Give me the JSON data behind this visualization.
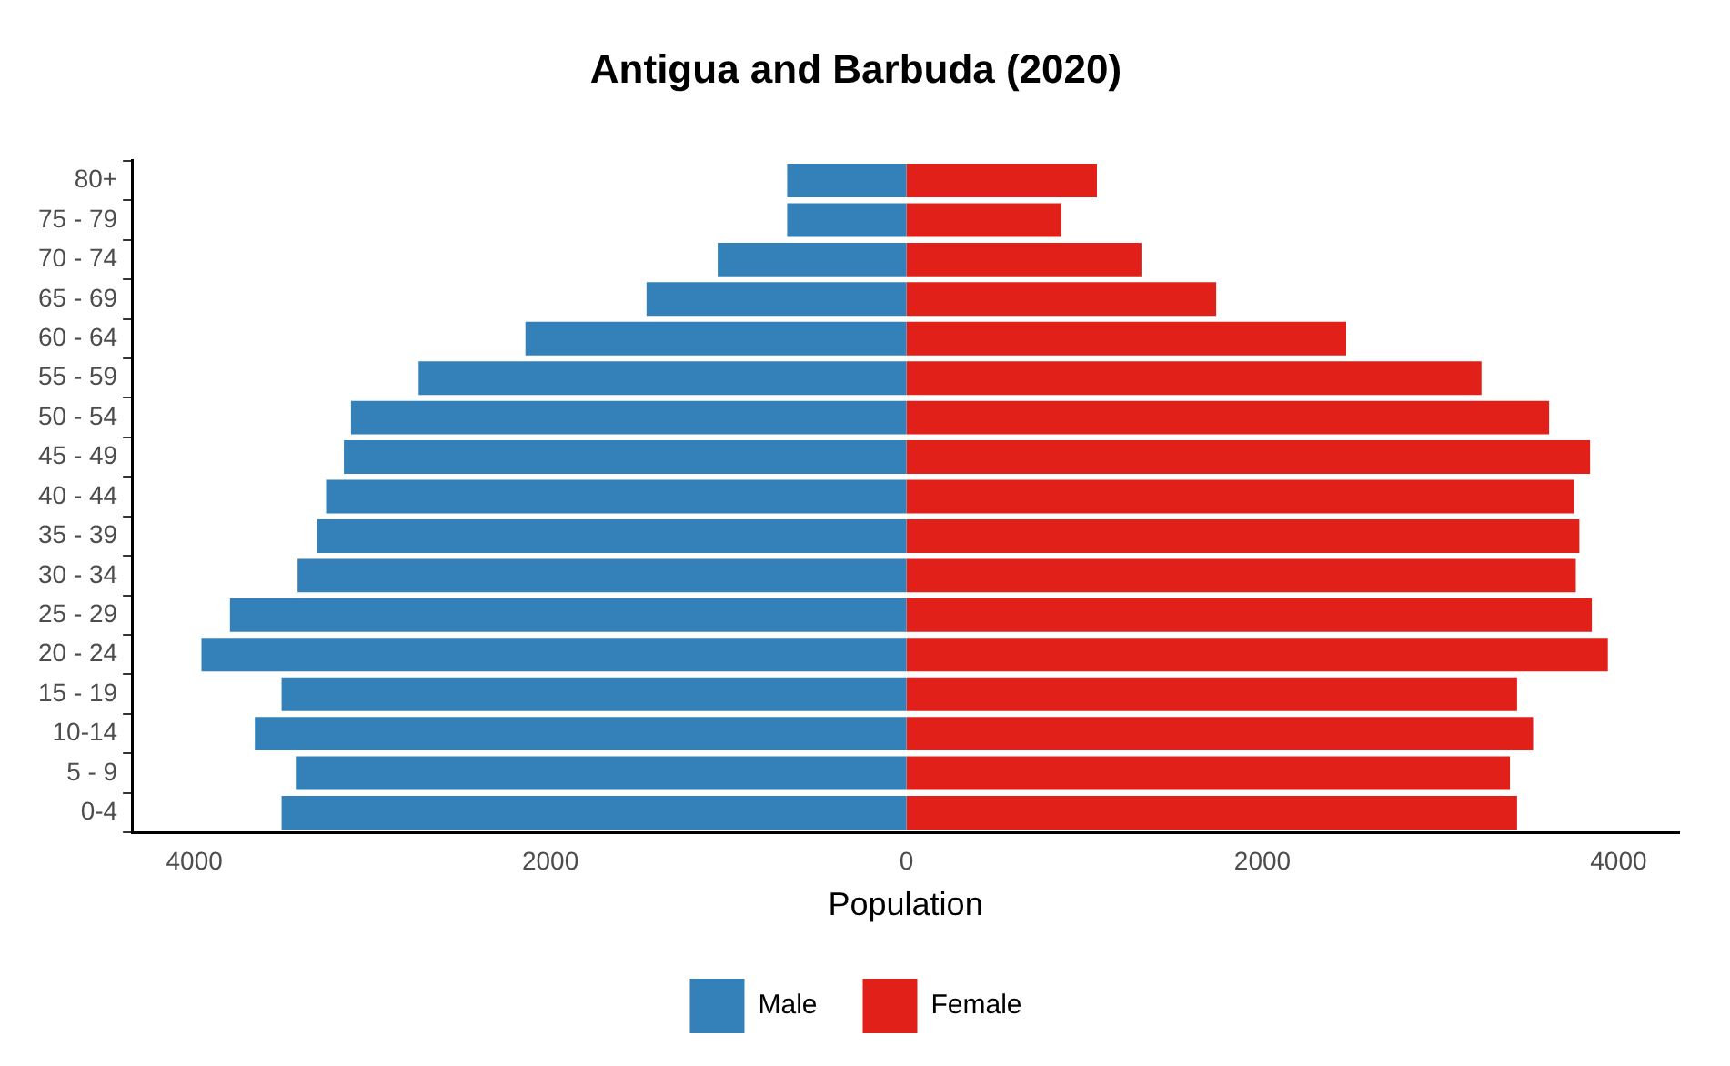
{
  "chart_data": {
    "type": "bar",
    "title": "Antigua and Barbuda (2020)",
    "xlabel": "Population",
    "orientation": "horizontal",
    "stacked": true,
    "categories": [
      "80+",
      "75 - 79",
      "70 - 74",
      "65 - 69",
      "60 - 64",
      "55 - 59",
      "50 - 54",
      "45 - 49",
      "40 - 44",
      "35 - 39",
      "30 - 34",
      "25 - 29",
      "20 - 24",
      "15 - 19",
      "10-14",
      "5 - 9",
      "0-4"
    ],
    "series": [
      {
        "name": "Male",
        "color": "#3480b8",
        "values": [
          -670,
          -670,
          -1060,
          -1460,
          -2140,
          -2740,
          -3120,
          -3160,
          -3260,
          -3310,
          -3420,
          -3800,
          -3960,
          -3510,
          -3660,
          -3430,
          -3510
        ]
      },
      {
        "name": "Female",
        "color": "#e12119",
        "values": [
          1070,
          870,
          1320,
          1740,
          2470,
          3230,
          3610,
          3840,
          3750,
          3780,
          3760,
          3850,
          3940,
          3430,
          3520,
          3390,
          3430
        ]
      }
    ],
    "xlim": [
      -4350,
      4340
    ],
    "xticks": [
      {
        "value": -4000,
        "label": "4000"
      },
      {
        "value": -2000,
        "label": "2000"
      },
      0,
      2000,
      4000
    ],
    "grid": false,
    "legend": "bottom"
  }
}
